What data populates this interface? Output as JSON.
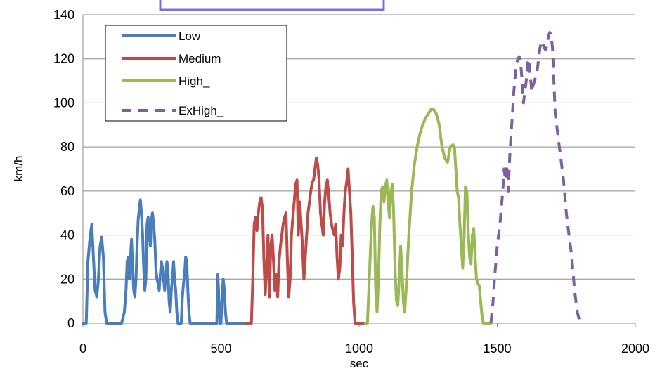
{
  "chart_data": {
    "type": "line",
    "title": "",
    "xlabel": "sec",
    "ylabel": "km/h",
    "xlim": [
      0,
      2000
    ],
    "ylim": [
      0,
      140
    ],
    "xticks": [
      0,
      500,
      1000,
      1500,
      2000
    ],
    "yticks": [
      0,
      20,
      40,
      60,
      80,
      100,
      120,
      140
    ],
    "grid": "horizontal",
    "legend_position": "top-left",
    "series": [
      {
        "name": "Low",
        "color": "#4a7ebb",
        "dash": "solid",
        "x": [
          0,
          12,
          18,
          25,
          32,
          38,
          44,
          50,
          56,
          62,
          68,
          74,
          80,
          86,
          92,
          98,
          102,
          106,
          110,
          130,
          140,
          150,
          156,
          160,
          164,
          168,
          172,
          176,
          180,
          184,
          188,
          192,
          196,
          200,
          204,
          208,
          212,
          216,
          220,
          224,
          228,
          232,
          236,
          240,
          244,
          248,
          252,
          256,
          260,
          264,
          268,
          272,
          276,
          280,
          284,
          288,
          292,
          296,
          300,
          304,
          308,
          312,
          316,
          320,
          324,
          328,
          332,
          336,
          340,
          344,
          348,
          352,
          356,
          360,
          364,
          368,
          372,
          376,
          380,
          384,
          388,
          392,
          396,
          400,
          404,
          408,
          412,
          416,
          420,
          440,
          460,
          475,
          480,
          485,
          488,
          491,
          494,
          497,
          500,
          504,
          508,
          512,
          516,
          520,
          524,
          528,
          532,
          536,
          540,
          544,
          548,
          552,
          556,
          560,
          565,
          570,
          575,
          580,
          589
        ],
        "y": [
          0,
          0,
          28,
          38,
          45,
          30,
          15,
          12,
          20,
          35,
          39,
          30,
          5,
          0,
          0,
          0,
          0,
          0,
          0,
          0,
          0,
          5,
          15,
          28,
          30,
          20,
          30,
          38,
          25,
          15,
          12,
          20,
          35,
          47,
          52,
          56,
          50,
          40,
          25,
          15,
          20,
          45,
          48,
          40,
          35,
          47,
          50,
          45,
          38,
          25,
          20,
          18,
          15,
          22,
          28,
          25,
          20,
          15,
          22,
          28,
          24,
          10,
          5,
          15,
          20,
          28,
          20,
          15,
          5,
          0,
          0,
          0,
          0,
          12,
          18,
          22,
          30,
          28,
          15,
          5,
          0,
          0,
          0,
          0,
          0,
          0,
          0,
          0,
          0,
          0,
          0,
          0,
          0,
          0,
          22,
          15,
          5,
          0,
          0,
          12,
          20,
          15,
          5,
          0,
          0,
          0,
          0,
          0,
          0,
          0,
          0,
          0,
          0,
          0,
          0,
          0,
          0,
          0,
          0
        ]
      },
      {
        "name": "Medium",
        "color": "#be4b48",
        "dash": "solid",
        "x": [
          589,
          600,
          610,
          615,
          620,
          625,
          630,
          635,
          640,
          645,
          650,
          655,
          660,
          665,
          670,
          675,
          680,
          685,
          690,
          695,
          700,
          705,
          710,
          715,
          720,
          725,
          730,
          735,
          740,
          745,
          750,
          755,
          760,
          765,
          770,
          775,
          780,
          785,
          790,
          795,
          800,
          805,
          810,
          815,
          820,
          825,
          830,
          835,
          840,
          845,
          850,
          855,
          860,
          865,
          870,
          875,
          880,
          885,
          890,
          895,
          900,
          905,
          910,
          915,
          920,
          925,
          930,
          935,
          940,
          945,
          950,
          955,
          960,
          965,
          970,
          975,
          980,
          985,
          990,
          995,
          1000,
          1010,
          1022
        ],
        "y": [
          0,
          0,
          0,
          20,
          45,
          48,
          42,
          50,
          55,
          57,
          52,
          30,
          13,
          25,
          40,
          12,
          35,
          40,
          28,
          15,
          22,
          12,
          28,
          35,
          40,
          45,
          48,
          50,
          30,
          12,
          20,
          40,
          48,
          55,
          63,
          65,
          40,
          55,
          45,
          35,
          20,
          30,
          40,
          50,
          55,
          60,
          64,
          65,
          70,
          75,
          72,
          65,
          50,
          45,
          40,
          55,
          62,
          65,
          58,
          50,
          45,
          42,
          40,
          45,
          30,
          20,
          25,
          40,
          35,
          50,
          60,
          64,
          70,
          60,
          50,
          30,
          10,
          0,
          0,
          0,
          0,
          0,
          0
        ]
      },
      {
        "name": "High",
        "color": "#98b954",
        "dash": "solid",
        "x": [
          1022,
          1030,
          1035,
          1040,
          1045,
          1050,
          1055,
          1060,
          1065,
          1070,
          1075,
          1080,
          1085,
          1090,
          1095,
          1100,
          1105,
          1110,
          1115,
          1120,
          1125,
          1130,
          1135,
          1140,
          1145,
          1150,
          1155,
          1160,
          1165,
          1170,
          1180,
          1190,
          1200,
          1210,
          1220,
          1230,
          1240,
          1250,
          1260,
          1270,
          1280,
          1290,
          1300,
          1310,
          1320,
          1330,
          1340,
          1345,
          1350,
          1355,
          1360,
          1365,
          1370,
          1375,
          1380,
          1385,
          1390,
          1395,
          1400,
          1405,
          1410,
          1415,
          1420,
          1425,
          1430,
          1435,
          1440,
          1445,
          1450,
          1455,
          1460,
          1465,
          1470,
          1477
        ],
        "y": [
          0,
          0,
          15,
          30,
          45,
          53,
          48,
          15,
          5,
          20,
          45,
          60,
          62,
          55,
          62,
          65,
          55,
          48,
          60,
          63,
          50,
          25,
          10,
          8,
          20,
          35,
          25,
          10,
          5,
          15,
          40,
          60,
          72,
          80,
          86,
          90,
          93,
          95,
          97,
          97,
          95,
          90,
          80,
          75,
          73,
          80,
          81,
          80,
          70,
          60,
          57,
          45,
          35,
          25,
          38,
          62,
          60,
          42,
          30,
          27,
          40,
          43,
          30,
          20,
          18,
          17,
          10,
          3,
          0,
          0,
          0,
          0,
          0,
          0
        ]
      },
      {
        "name": "ExHigh",
        "color": "#7d60a0",
        "dash": "dashed",
        "x": [
          1477,
          1485,
          1490,
          1500,
          1510,
          1520,
          1525,
          1530,
          1535,
          1540,
          1545,
          1550,
          1555,
          1560,
          1565,
          1570,
          1575,
          1580,
          1585,
          1590,
          1595,
          1600,
          1605,
          1610,
          1615,
          1620,
          1625,
          1630,
          1635,
          1640,
          1645,
          1650,
          1655,
          1660,
          1665,
          1670,
          1675,
          1680,
          1685,
          1690,
          1695,
          1700,
          1705,
          1710,
          1715,
          1720,
          1725,
          1730,
          1740,
          1750,
          1760,
          1770,
          1780,
          1790,
          1800
        ],
        "y": [
          0,
          10,
          20,
          35,
          45,
          60,
          70,
          65,
          72,
          60,
          75,
          85,
          95,
          105,
          112,
          118,
          120,
          121,
          118,
          110,
          100,
          105,
          110,
          118,
          120,
          112,
          105,
          108,
          110,
          112,
          115,
          120,
          125,
          128,
          127,
          125,
          124,
          126,
          130,
          132,
          131,
          125,
          110,
          95,
          90,
          85,
          80,
          75,
          65,
          50,
          40,
          30,
          15,
          5,
          0
        ]
      }
    ]
  },
  "legend_labels": [
    "Low",
    "Medium",
    "High_",
    "ExHigh_"
  ]
}
